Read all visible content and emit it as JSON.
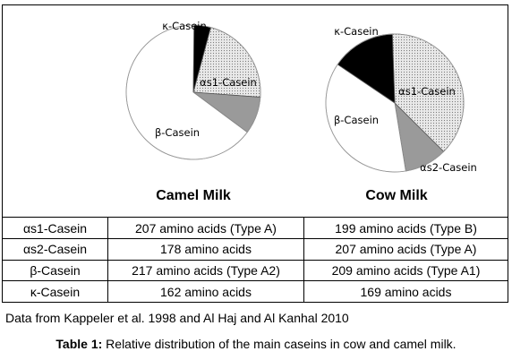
{
  "chart_data": [
    {
      "type": "pie",
      "title": "Camel Milk",
      "slices": [
        {
          "label": "αs1-Casein",
          "value": 22,
          "fill": "dots",
          "show_label": true
        },
        {
          "label": "αs2-Casein",
          "value": 9,
          "fill": "gray",
          "show_label": false
        },
        {
          "label": "β-Casein",
          "value": 65,
          "fill": "white",
          "show_label": true
        },
        {
          "label": "κ-Casein",
          "value": 4,
          "fill": "black",
          "show_label": true
        }
      ]
    },
    {
      "type": "pie",
      "title": "Cow Milk",
      "slices": [
        {
          "label": "αs1-Casein",
          "value": 38,
          "fill": "dots",
          "show_label": true
        },
        {
          "label": "αs2-Casein",
          "value": 10,
          "fill": "gray",
          "show_label": true
        },
        {
          "label": "β-Casein",
          "value": 37,
          "fill": "white",
          "show_label": true
        },
        {
          "label": "κ-Casein",
          "value": 15,
          "fill": "black",
          "show_label": true
        }
      ]
    }
  ],
  "table": {
    "rows": [
      {
        "casein": "αs1-Casein",
        "camel": "207 amino acids  (Type A)",
        "cow": "199 amino acids (Type B)"
      },
      {
        "casein": "αs2-Casein",
        "camel": "178 amino acids",
        "cow": "207 amino acids (Type A)"
      },
      {
        "casein": "β-Casein",
        "camel": "217 amino acids (Type A2)",
        "cow": "209 amino acids (Type A1)"
      },
      {
        "casein": "κ-Casein",
        "camel": "162 amino acids",
        "cow": "169 amino acids"
      }
    ]
  },
  "source_note": "Data from Kappeler et al. 1998 and Al Haj and Al Kanhal 2010",
  "caption": {
    "label": "Table 1:",
    "text": " Relative distribution of the main caseins in cow and camel milk."
  },
  "colors": {
    "line": "#000000",
    "gray_fill": "#9a9a9a",
    "dot_fill": "#c8c8c8",
    "background": "#ffffff"
  }
}
